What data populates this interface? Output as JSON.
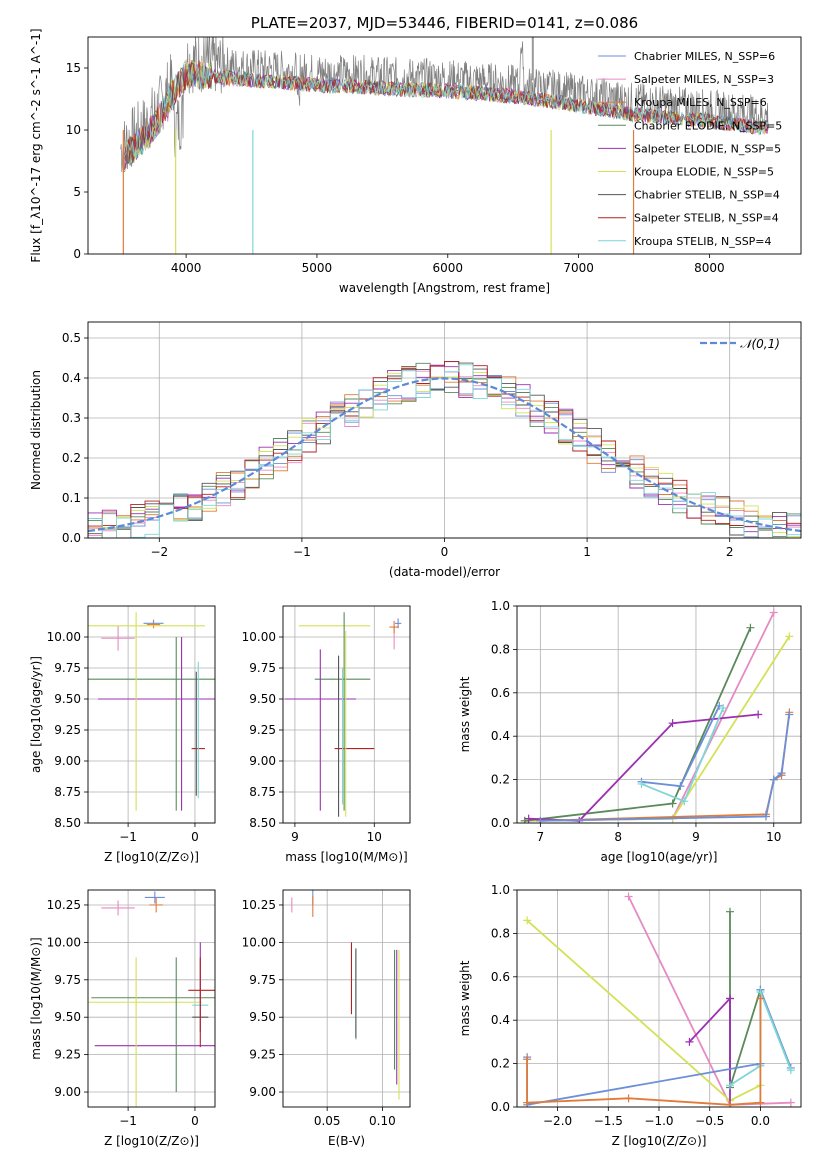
{
  "chart_data": [
    {
      "id": "spectrum",
      "type": "line",
      "title": "PLATE=2037, MJD=53446, FIBERID=0141, z=0.086",
      "xlabel": "wavelength [Angstrom, rest frame]",
      "ylabel": "Flux [f_λ10^-17 erg cm^-2 s^-1 A^-1]",
      "xlim": [
        3250,
        8700
      ],
      "ylim": [
        0,
        17.5
      ],
      "xticks": [
        4000,
        5000,
        6000,
        7000,
        8000
      ],
      "yticks": [
        0,
        5,
        10,
        15
      ],
      "legend": "top-right",
      "series": [
        {
          "name": "Chabrier MILES, N_SSP=6",
          "color": "#6b8fd8"
        },
        {
          "name": "Salpeter MILES, N_SSP=3",
          "color": "#e78ac3"
        },
        {
          "name": "Kroupa MILES, N_SSP=6",
          "color": "#e07b39"
        },
        {
          "name": "Chabrier ELODIE, N_SSP=5",
          "color": "#5a8a5a"
        },
        {
          "name": "Salpeter ELODIE, N_SSP=5",
          "color": "#9b30b0"
        },
        {
          "name": "Kroupa ELODIE, N_SSP=5",
          "color": "#d4e157"
        },
        {
          "name": "Chabrier STELIB, N_SSP=4",
          "color": "#555555"
        },
        {
          "name": "Salpeter STELIB, N_SSP=4",
          "color": "#b22222"
        },
        {
          "name": "Kroupa STELIB, N_SSP=4",
          "color": "#7fd6d6"
        }
      ],
      "data_color": "#7f7f7f",
      "continuum": {
        "x": [
          3500,
          3600,
          3700,
          3800,
          3900,
          4000,
          4100,
          4300,
          4500,
          4800,
          5000,
          5300,
          5600,
          5900,
          6200,
          6500,
          6800,
          7100,
          7400,
          7700,
          8000,
          8400
        ],
        "y": [
          8.5,
          9.5,
          10.5,
          12.0,
          14.0,
          15.5,
          15.5,
          15.2,
          15.0,
          14.8,
          14.6,
          14.5,
          14.3,
          14.2,
          14.0,
          13.7,
          13.3,
          12.8,
          12.3,
          12.0,
          11.7,
          11.2
        ]
      }
    },
    {
      "id": "residuals",
      "type": "line",
      "xlabel": "(data-model)/error",
      "ylabel": "Normed distribution",
      "xlim": [
        -2.5,
        2.5
      ],
      "ylim": [
        0,
        0.54
      ],
      "xticks": [
        -2,
        -1,
        0,
        1,
        2
      ],
      "yticks": [
        0.0,
        0.1,
        0.2,
        0.3,
        0.4,
        0.5
      ],
      "grid": true,
      "legend": "top-right",
      "gaussian": {
        "name": "𝒩(0,1)",
        "color": "#5b8ad8",
        "mu": 0,
        "sigma": 1
      },
      "bin_width": 0.1
    },
    {
      "id": "age-vs-Z",
      "type": "scatter",
      "xlabel": "Z [log10(Z/Z⊙)]",
      "ylabel": "age [log10(age/yr)]",
      "xlim": [
        -1.6,
        0.3
      ],
      "ylim": [
        8.5,
        10.25
      ],
      "xticks": [
        -1,
        0
      ],
      "yticks": [
        8.5,
        8.75,
        9.0,
        9.25,
        9.5,
        9.75,
        10.0
      ],
      "grid": true,
      "points": [
        {
          "x": -0.62,
          "y": 10.11,
          "xerr": 0.15,
          "yerr": 0.03,
          "color": "#6b8fd8"
        },
        {
          "x": -1.15,
          "y": 9.99,
          "xerr": 0.25,
          "yerr": 0.1,
          "color": "#e78ac3"
        },
        {
          "x": -0.62,
          "y": 10.1,
          "xerr": 0.1,
          "yerr": 0.03,
          "color": "#e07b39"
        },
        {
          "x": -0.6,
          "y": 9.66,
          "xerr": 1.0,
          "yerr": 0.0,
          "color": "#5a8a5a"
        },
        {
          "x": -0.25,
          "y": 9.5,
          "xerr": 1.2,
          "yerr": 0.0,
          "color": "#9b30b0"
        },
        {
          "x": -0.85,
          "y": 10.09,
          "xerr": 1.0,
          "yerr": 0.0,
          "color": "#d4e157"
        },
        {
          "x": 0.05,
          "y": 9.1,
          "xerr": 0.1,
          "yerr": 0.0,
          "color": "#b22222"
        },
        {
          "x": 0.05,
          "y": 9.25,
          "xerr": 0.0,
          "yerr": 0.55,
          "color": "#7fd6d6"
        },
        {
          "x": 0.02,
          "y": 9.22,
          "xerr": 0.0,
          "yerr": 0.5,
          "color": "#555555"
        },
        {
          "x": -0.2,
          "y": 9.3,
          "xerr": 0.0,
          "yerr": 0.7,
          "color": "#9b30b0"
        },
        {
          "x": -0.28,
          "y": 9.3,
          "xerr": 0.0,
          "yerr": 0.7,
          "color": "#5a8a5a"
        },
        {
          "x": -0.88,
          "y": 9.4,
          "xerr": 0.0,
          "yerr": 0.8,
          "color": "#d4e157"
        }
      ]
    },
    {
      "id": "age-vs-mass",
      "type": "scatter",
      "xlabel": "mass [log10(M/M⊙)]",
      "ylabel": "",
      "xlim": [
        8.85,
        10.45
      ],
      "ylim": [
        8.5,
        10.25
      ],
      "xticks": [
        9,
        10
      ],
      "yticks": [
        8.5,
        8.75,
        9.0,
        9.25,
        9.5,
        9.75,
        10.0
      ],
      "grid": true,
      "points": [
        {
          "x": 10.3,
          "y": 10.11,
          "xerr": 0.04,
          "yerr": 0.04,
          "color": "#6b8fd8"
        },
        {
          "x": 10.25,
          "y": 10.0,
          "xerr": 0.0,
          "yerr": 0.1,
          "color": "#e78ac3"
        },
        {
          "x": 10.25,
          "y": 10.08,
          "xerr": 0.06,
          "yerr": 0.05,
          "color": "#e07b39"
        },
        {
          "x": 9.6,
          "y": 9.66,
          "xerr": 0.35,
          "yerr": 0.0,
          "color": "#5a8a5a"
        },
        {
          "x": 9.32,
          "y": 9.5,
          "xerr": 0.45,
          "yerr": 0.0,
          "color": "#9b30b0"
        },
        {
          "x": 9.5,
          "y": 10.09,
          "xerr": 0.45,
          "yerr": 0.0,
          "color": "#d4e157"
        },
        {
          "x": 9.75,
          "y": 9.1,
          "xerr": 0.25,
          "yerr": 0.0,
          "color": "#b22222"
        },
        {
          "x": 9.6,
          "y": 9.2,
          "xerr": 0.0,
          "yerr": 0.55,
          "color": "#7fd6d6"
        },
        {
          "x": 9.55,
          "y": 9.2,
          "xerr": 0.0,
          "yerr": 0.65,
          "color": "#555555"
        },
        {
          "x": 9.32,
          "y": 9.25,
          "xerr": 0.0,
          "yerr": 0.65,
          "color": "#9b30b0"
        },
        {
          "x": 9.62,
          "y": 9.4,
          "xerr": 0.0,
          "yerr": 0.8,
          "color": "#5a8a5a"
        },
        {
          "x": 9.64,
          "y": 9.3,
          "xerr": 0.0,
          "yerr": 0.75,
          "color": "#d4e157"
        }
      ]
    },
    {
      "id": "weight-vs-age",
      "type": "line",
      "xlabel": "age [log10(age/yr)]",
      "ylabel": "mass weight",
      "xlim": [
        6.7,
        10.35
      ],
      "ylim": [
        0,
        1.0
      ],
      "xticks": [
        7,
        8,
        9,
        10
      ],
      "yticks": [
        0.0,
        0.2,
        0.4,
        0.6,
        0.8,
        1.0
      ],
      "grid": true,
      "series": [
        {
          "color": "#e78ac3",
          "x": [
            6.8,
            8.7,
            10.0
          ],
          "y": [
            0.01,
            0.02,
            0.97
          ]
        },
        {
          "color": "#d4e157",
          "x": [
            6.8,
            8.7,
            10.2
          ],
          "y": [
            0.01,
            0.02,
            0.86
          ]
        },
        {
          "color": "#5a8a5a",
          "x": [
            6.8,
            8.7,
            9.7
          ],
          "y": [
            0.01,
            0.09,
            0.9
          ]
        },
        {
          "color": "#9b30b0",
          "x": [
            6.85,
            7.5,
            8.7,
            9.8
          ],
          "y": [
            0.02,
            0.01,
            0.46,
            0.5
          ]
        },
        {
          "color": "#6b8fd8",
          "x": [
            8.3,
            8.8,
            9.3
          ],
          "y": [
            0.19,
            0.17,
            0.54
          ]
        },
        {
          "color": "#7fd6d6",
          "x": [
            8.3,
            8.85,
            9.35
          ],
          "y": [
            0.18,
            0.1,
            0.53
          ]
        },
        {
          "color": "#e07b39",
          "x": [
            7.0,
            9.9,
            10.0,
            10.1,
            10.2
          ],
          "y": [
            0.01,
            0.04,
            0.2,
            0.22,
            0.51
          ]
        },
        {
          "color": "#6b8fd8",
          "x": [
            7.0,
            9.9,
            10.0,
            10.1,
            10.2
          ],
          "y": [
            0.01,
            0.03,
            0.2,
            0.23,
            0.5
          ]
        }
      ]
    },
    {
      "id": "mass-vs-Z",
      "type": "scatter",
      "xlabel": "Z [log10(Z/Z⊙)]",
      "ylabel": "mass [log10(M/M⊙)]",
      "xlim": [
        -1.6,
        0.3
      ],
      "ylim": [
        8.9,
        10.35
      ],
      "xticks": [
        -1,
        0
      ],
      "yticks": [
        9.0,
        9.25,
        9.5,
        9.75,
        10.0,
        10.25
      ],
      "grid": true,
      "points": [
        {
          "x": -0.6,
          "y": 10.3,
          "xerr": 0.15,
          "yerr": 0.04,
          "color": "#6b8fd8"
        },
        {
          "x": -1.15,
          "y": 10.23,
          "xerr": 0.25,
          "yerr": 0.05,
          "color": "#e78ac3"
        },
        {
          "x": -0.58,
          "y": 10.25,
          "xerr": 0.1,
          "yerr": 0.05,
          "color": "#e07b39"
        },
        {
          "x": -0.6,
          "y": 9.63,
          "xerr": 0.95,
          "yerr": 0.0,
          "color": "#5a8a5a"
        },
        {
          "x": -0.25,
          "y": 9.31,
          "xerr": 1.25,
          "yerr": 0.0,
          "color": "#9b30b0"
        },
        {
          "x": -0.85,
          "y": 9.6,
          "xerr": 0.95,
          "yerr": 0.0,
          "color": "#d4e157"
        },
        {
          "x": 0.1,
          "y": 9.68,
          "xerr": 0.2,
          "yerr": 0.0,
          "color": "#b22222"
        },
        {
          "x": 0.08,
          "y": 9.58,
          "xerr": 0.12,
          "yerr": 0.0,
          "color": "#7fd6d6"
        },
        {
          "x": 0.08,
          "y": 9.5,
          "xerr": 0.12,
          "yerr": 0.0,
          "color": "#555555"
        },
        {
          "x": 0.08,
          "y": 9.7,
          "xerr": 0.0,
          "yerr": 0.3,
          "color": "#9b30b0"
        },
        {
          "x": -0.28,
          "y": 9.45,
          "xerr": 0.0,
          "yerr": 0.45,
          "color": "#5a8a5a"
        },
        {
          "x": -0.88,
          "y": 9.4,
          "xerr": 0.0,
          "yerr": 0.5,
          "color": "#d4e157"
        },
        {
          "x": 0.08,
          "y": 9.6,
          "xerr": 0.0,
          "yerr": 0.3,
          "color": "#b22222"
        }
      ]
    },
    {
      "id": "mass-vs-ebv",
      "type": "scatter",
      "xlabel": "E(B-V)",
      "ylabel": "",
      "xlim": [
        0.01,
        0.125
      ],
      "ylim": [
        8.9,
        10.35
      ],
      "xticks": [
        0.05,
        0.1
      ],
      "yticks": [
        9.0,
        9.25,
        9.5,
        9.75,
        10.0,
        10.25
      ],
      "grid": true,
      "points": [
        {
          "x": 0.037,
          "y": 10.3,
          "xerr": 0.0,
          "yerr": 0.05,
          "color": "#6b8fd8"
        },
        {
          "x": 0.018,
          "y": 10.25,
          "xerr": 0.0,
          "yerr": 0.05,
          "color": "#e78ac3"
        },
        {
          "x": 0.037,
          "y": 10.24,
          "xerr": 0.0,
          "yerr": 0.07,
          "color": "#e07b39"
        },
        {
          "x": 0.072,
          "y": 9.76,
          "xerr": 0.0,
          "yerr": 0.24,
          "color": "#b22222"
        },
        {
          "x": 0.076,
          "y": 9.65,
          "xerr": 0.0,
          "yerr": 0.3,
          "color": "#7fd6d6"
        },
        {
          "x": 0.076,
          "y": 9.66,
          "xerr": 0.0,
          "yerr": 0.3,
          "color": "#555555"
        },
        {
          "x": 0.113,
          "y": 9.5,
          "xerr": 0.0,
          "yerr": 0.45,
          "color": "#9b30b0"
        },
        {
          "x": 0.115,
          "y": 9.45,
          "xerr": 0.0,
          "yerr": 0.5,
          "color": "#d4e157"
        },
        {
          "x": 0.111,
          "y": 9.55,
          "xerr": 0.0,
          "yerr": 0.4,
          "color": "#5a8a5a"
        }
      ]
    },
    {
      "id": "weight-vs-Z",
      "type": "line",
      "xlabel": "Z [log10(Z/Z⊙)]",
      "ylabel": "mass weight",
      "xlim": [
        -2.4,
        0.4
      ],
      "ylim": [
        0,
        1.0
      ],
      "xticks": [
        -2.0,
        -1.5,
        -1.0,
        -0.5,
        0.0
      ],
      "yticks": [
        0.0,
        0.2,
        0.4,
        0.6,
        0.8,
        1.0
      ],
      "grid": true,
      "series": [
        {
          "color": "#e78ac3",
          "x": [
            -1.3,
            -0.3,
            0.3
          ],
          "y": [
            0.97,
            0.01,
            0.02
          ]
        },
        {
          "color": "#d4e157",
          "x": [
            -2.3,
            -0.3,
            0.0
          ],
          "y": [
            0.86,
            0.03,
            0.1
          ]
        },
        {
          "color": "#5a8a5a",
          "x": [
            -0.3,
            -0.3,
            -0.3,
            0.0
          ],
          "y": [
            0.9,
            0.5,
            0.09,
            0.54
          ]
        },
        {
          "color": "#9b30b0",
          "x": [
            -0.7,
            -0.3,
            -0.3
          ],
          "y": [
            0.3,
            0.5,
            0.01
          ]
        },
        {
          "color": "#6b8fd8",
          "x": [
            -2.3,
            -2.3,
            0.0,
            0.0,
            0.3
          ],
          "y": [
            0.23,
            0.01,
            0.2,
            0.54,
            0.18
          ]
        },
        {
          "color": "#7fd6d6",
          "x": [
            -0.3,
            0.0,
            0.0,
            0.3
          ],
          "y": [
            0.1,
            0.19,
            0.53,
            0.17
          ]
        },
        {
          "color": "#e07b39",
          "x": [
            -2.3,
            -2.3,
            -1.3,
            -0.3,
            0.0,
            0.0
          ],
          "y": [
            0.22,
            0.02,
            0.04,
            0.01,
            0.02,
            0.5
          ]
        }
      ]
    }
  ]
}
